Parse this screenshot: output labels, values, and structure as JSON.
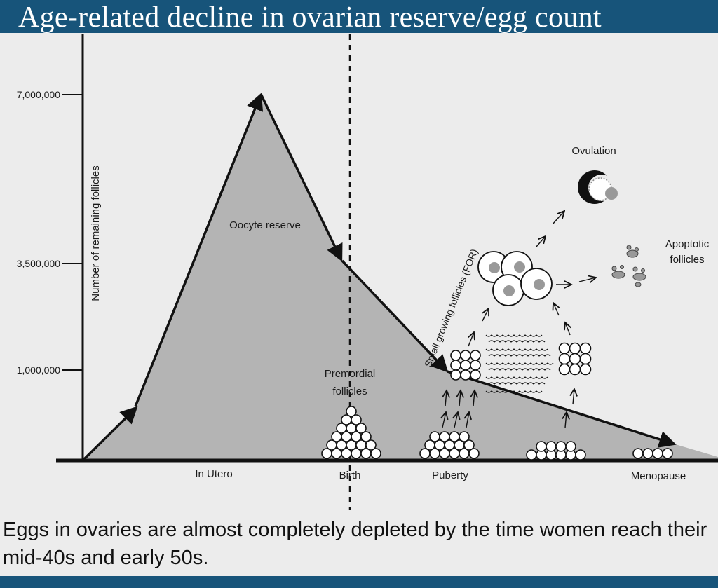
{
  "title": "Age-related decline in ovarian reserve/egg count",
  "caption": "Eggs in ovaries are almost completely depleted by the time women reach their mid-40s and early 50s.",
  "colors": {
    "banner": "#17547a",
    "background": "#ececec",
    "area_fill": "#b4b4b4",
    "line": "#111111"
  },
  "axis": {
    "ylabel": "Number of remaining follicles",
    "y_ticks": [
      "7,000,000",
      "3,500,000",
      "1,000,000"
    ],
    "x_labels": [
      "In Utero",
      "Birth",
      "Puberty",
      "Menopause"
    ]
  },
  "labels": {
    "oocyte_reserve": "Oocyte reserve",
    "premordial_line1": "Premordial",
    "premordial_line2": "follicles",
    "small_growing": "Small growing follicles (FOR)",
    "ovulation": "Ovulation",
    "apoptotic_line1": "Apoptotic",
    "apoptotic_line2": "follicles"
  }
}
